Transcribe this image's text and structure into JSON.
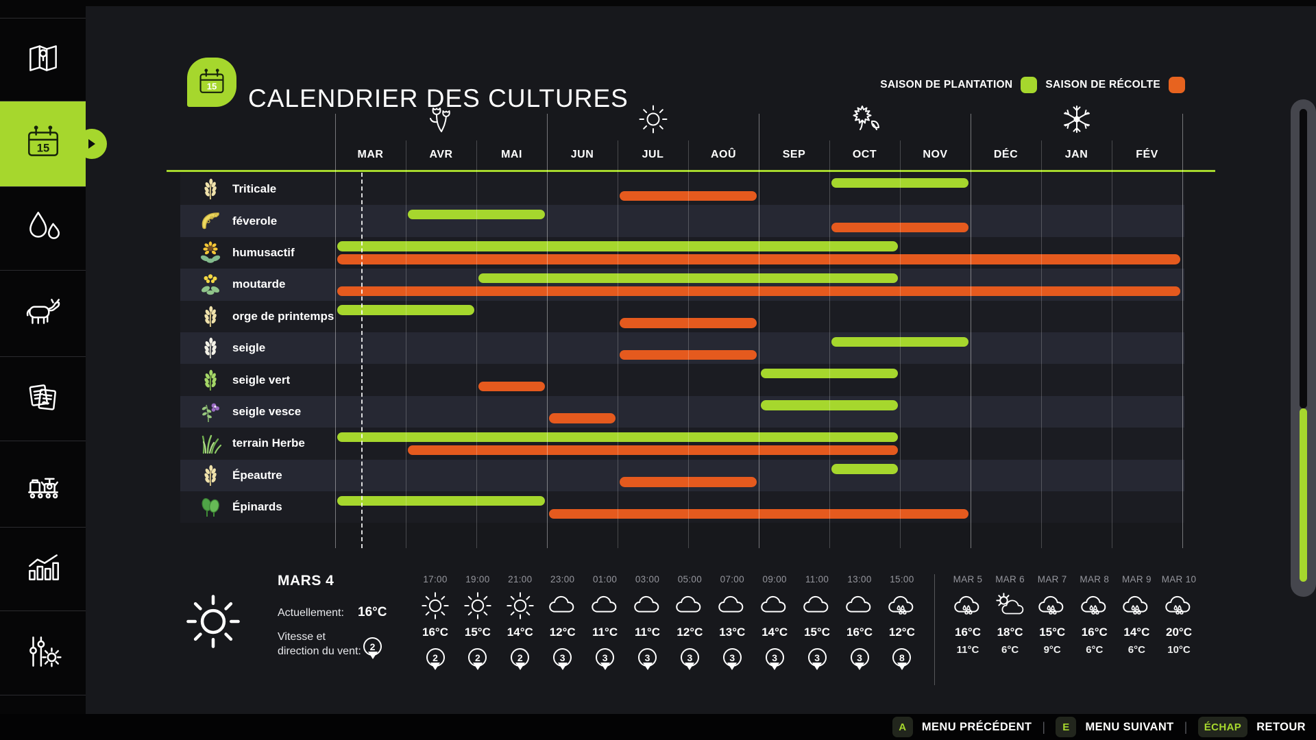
{
  "app": {
    "accent_green": "#a6d72d",
    "accent_orange": "#e55a1e"
  },
  "sidebar": {
    "items": [
      {
        "id": "map",
        "icon": "map-icon"
      },
      {
        "id": "calendar",
        "icon": "calendar-icon",
        "badge": "15",
        "selected": true
      },
      {
        "id": "water",
        "icon": "water-drops-icon"
      },
      {
        "id": "animals",
        "icon": "cow-icon"
      },
      {
        "id": "finances",
        "icon": "documents-icon"
      },
      {
        "id": "production",
        "icon": "production-line-icon"
      },
      {
        "id": "statistics",
        "icon": "bar-chart-icon"
      },
      {
        "id": "settings",
        "icon": "sliders-gear-icon"
      }
    ]
  },
  "header": {
    "title": "CALENDRIER DES CULTURES",
    "icon_day": "15",
    "legend": [
      {
        "label": "SAISON DE PLANTATION",
        "color": "#a6d72d"
      },
      {
        "label": "SAISON DE RÉCOLTE",
        "color": "#e7631f"
      }
    ]
  },
  "calendar": {
    "months": [
      "MAR",
      "AVR",
      "MAI",
      "JUN",
      "JUL",
      "AOÛ",
      "SEP",
      "OCT",
      "NOV",
      "DÉC",
      "JAN",
      "FÉV"
    ],
    "seasons": [
      {
        "name": "printemps",
        "icon": "spring-flowers-icon"
      },
      {
        "name": "été",
        "icon": "summer-sun-icon"
      },
      {
        "name": "automne",
        "icon": "autumn-leaves-icon"
      },
      {
        "name": "hiver",
        "icon": "winter-snowflake-icon"
      }
    ],
    "current_date_marker": {
      "month": "MAR",
      "fraction": 0.37
    },
    "crops": [
      {
        "label": "Triticale",
        "icon": "wheat",
        "planting": [
          7,
          8
        ],
        "harvest": [
          4,
          5
        ]
      },
      {
        "label": "féverole",
        "icon": "bean",
        "planting": [
          1,
          2
        ],
        "harvest": [
          7,
          8
        ]
      },
      {
        "label": "humusactif",
        "icon": "sunflower",
        "planting": [
          0,
          7
        ],
        "harvest": [
          0,
          11
        ]
      },
      {
        "label": "moutarde",
        "icon": "mustard",
        "planting": [
          2,
          7
        ],
        "harvest": [
          0,
          11
        ]
      },
      {
        "label": "orge de printemps",
        "icon": "wheat",
        "planting": [
          0,
          1
        ],
        "harvest": [
          4,
          5
        ]
      },
      {
        "label": "seigle",
        "icon": "rye",
        "planting": [
          7,
          8
        ],
        "harvest": [
          4,
          5
        ]
      },
      {
        "label": "seigle vert",
        "icon": "ryegreen",
        "planting": [
          6,
          7
        ],
        "harvest": [
          2,
          2
        ]
      },
      {
        "label": "seigle vesce",
        "icon": "vetch",
        "planting": [
          6,
          7
        ],
        "harvest": [
          3,
          3
        ]
      },
      {
        "label": "terrain Herbe",
        "icon": "grass",
        "planting": [
          0,
          7
        ],
        "harvest": [
          1,
          7
        ]
      },
      {
        "label": "Épeautre",
        "icon": "wheat",
        "planting": [
          7,
          7
        ],
        "harvest": [
          4,
          5
        ]
      },
      {
        "label": "Épinards",
        "icon": "spinach",
        "planting": [
          0,
          2
        ],
        "harvest": [
          3,
          8
        ]
      }
    ]
  },
  "weather": {
    "current": {
      "date": "MARS 4",
      "icon": "sun",
      "current_label": "Actuellement:",
      "temp": "16°C",
      "wind_label_line1": "Vitesse et",
      "wind_label_line2": "direction du vent:",
      "wind": "2"
    },
    "hourly": [
      {
        "time": "17:00",
        "icon": "sun",
        "temp": "16°C",
        "wind": "2"
      },
      {
        "time": "19:00",
        "icon": "sun",
        "temp": "15°C",
        "wind": "2"
      },
      {
        "time": "21:00",
        "icon": "sun",
        "temp": "14°C",
        "wind": "2"
      },
      {
        "time": "23:00",
        "icon": "cloud",
        "temp": "12°C",
        "wind": "3"
      },
      {
        "time": "01:00",
        "icon": "cloud",
        "temp": "11°C",
        "wind": "3"
      },
      {
        "time": "03:00",
        "icon": "cloud",
        "temp": "11°C",
        "wind": "3"
      },
      {
        "time": "05:00",
        "icon": "cloud",
        "temp": "12°C",
        "wind": "3"
      },
      {
        "time": "07:00",
        "icon": "cloud",
        "temp": "13°C",
        "wind": "3"
      },
      {
        "time": "09:00",
        "icon": "cloud",
        "temp": "14°C",
        "wind": "3"
      },
      {
        "time": "11:00",
        "icon": "cloud",
        "temp": "15°C",
        "wind": "3"
      },
      {
        "time": "13:00",
        "icon": "cloud",
        "temp": "16°C",
        "wind": "3"
      },
      {
        "time": "15:00",
        "icon": "rain",
        "temp": "12°C",
        "wind": "8"
      }
    ],
    "daily": [
      {
        "day": "MAR 5",
        "icon": "rain",
        "high": "16°C",
        "low": "11°C"
      },
      {
        "day": "MAR 6",
        "icon": "partly",
        "high": "18°C",
        "low": "6°C"
      },
      {
        "day": "MAR 7",
        "icon": "rain",
        "high": "15°C",
        "low": "9°C"
      },
      {
        "day": "MAR 8",
        "icon": "rain",
        "high": "16°C",
        "low": "6°C"
      },
      {
        "day": "MAR 9",
        "icon": "rain",
        "high": "14°C",
        "low": "6°C"
      },
      {
        "day": "MAR 10",
        "icon": "rain",
        "high": "20°C",
        "low": "10°C"
      }
    ]
  },
  "footer": {
    "shortcuts": [
      {
        "key": "A",
        "label": "MENU PRÉCÉDENT"
      },
      {
        "key": "E",
        "label": "MENU SUIVANT"
      },
      {
        "key": "ÉCHAP",
        "label": "RETOUR"
      }
    ]
  }
}
